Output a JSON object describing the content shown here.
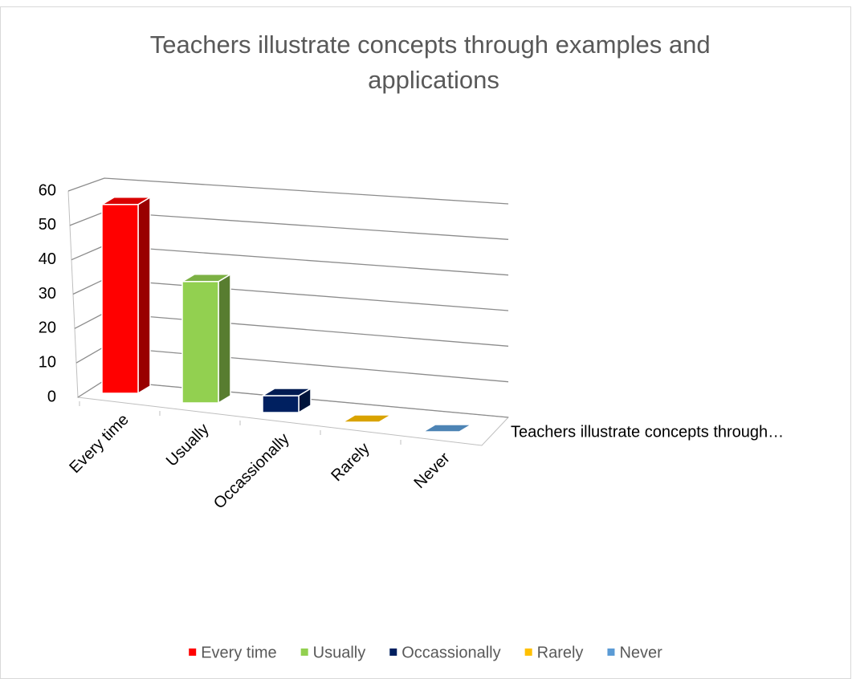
{
  "chart_data": {
    "type": "bar3d",
    "title": "Teachers illustrate concepts through examples and applications",
    "series_name": "Teachers illustrate concepts through…",
    "categories": [
      "Every time",
      "Usually",
      "Occassionally",
      "Rarely",
      "Never"
    ],
    "values": [
      56,
      36,
      5,
      0,
      0
    ],
    "colors": [
      "#ff0000",
      "#92d050",
      "#002060",
      "#ffc000",
      "#5b9bd5"
    ],
    "ylim": [
      0,
      60
    ],
    "yticks": [
      0,
      10,
      20,
      30,
      40,
      50,
      60
    ],
    "grid": true,
    "legend": "bottom"
  }
}
